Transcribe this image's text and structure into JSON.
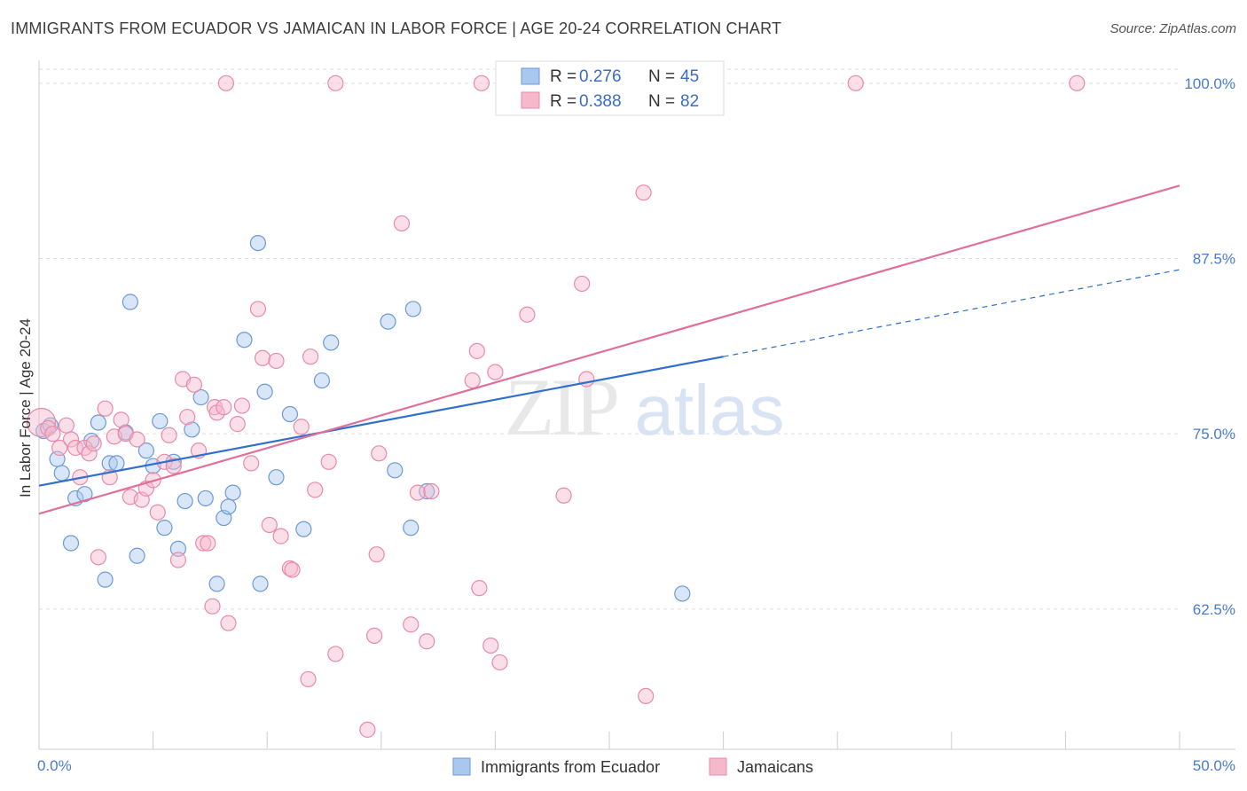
{
  "header": {
    "title": "IMMIGRANTS FROM ECUADOR VS JAMAICAN IN LABOR FORCE | AGE 20-24 CORRELATION CHART",
    "source": "Source: ZipAtlas.com"
  },
  "watermark": {
    "zip": "ZIP",
    "atlas": "atlas"
  },
  "legend": {
    "rows": [
      {
        "r_label": "R =",
        "r_value": "0.276",
        "n_label": "N =",
        "n_value": "45"
      },
      {
        "r_label": "R =",
        "r_value": "0.388",
        "n_label": "N =",
        "n_value": "82"
      }
    ]
  },
  "bottom_legend": [
    "Immigrants from Ecuador",
    "Jamaicans"
  ],
  "colors": {
    "ecuador_fill": "#a9c8f0",
    "ecuador_stroke": "#6b9ad8",
    "ecuador_line": "#2f6fcf",
    "jamaican_fill": "#f6b8cb",
    "jamaican_stroke": "#e98aa8",
    "jamaican_line": "#e0709a",
    "grid": "#dddddd",
    "tick_text": "#4a7bd0"
  },
  "chart_data": {
    "type": "scatter",
    "title": "IMMIGRANTS FROM ECUADOR VS JAMAICAN IN LABOR FORCE | AGE 20-24 CORRELATION CHART",
    "xlabel": "",
    "ylabel": "In Labor Force | Age 20-24",
    "xlim": [
      0,
      50
    ],
    "ylim": [
      52.5,
      101
    ],
    "x_tick_labels": [
      "0.0%",
      "50.0%"
    ],
    "y_ticks": [
      62.5,
      75.0,
      87.5,
      100.0
    ],
    "y_tick_labels": [
      "62.5%",
      "75.0%",
      "87.5%",
      "100.0%"
    ],
    "grid": true,
    "legend_position": "top-center",
    "series": [
      {
        "name": "Immigrants from Ecuador",
        "r": 0.276,
        "n": 45,
        "trend": {
          "x0": 0,
          "y0": 71.3,
          "x1": 30,
          "y1": 80.5,
          "dashed_to_x": 50,
          "dashed_to_y": 86.7
        },
        "points": [
          [
            0.2,
            75.2
          ],
          [
            0.5,
            75.6
          ],
          [
            0.8,
            73.2
          ],
          [
            1.0,
            72.2
          ],
          [
            1.4,
            67.2
          ],
          [
            1.6,
            70.4
          ],
          [
            2.0,
            70.7
          ],
          [
            2.3,
            74.5
          ],
          [
            2.6,
            75.8
          ],
          [
            2.9,
            64.6
          ],
          [
            3.1,
            72.9
          ],
          [
            3.4,
            72.9
          ],
          [
            3.8,
            75.1
          ],
          [
            4.0,
            84.4
          ],
          [
            4.3,
            66.3
          ],
          [
            4.7,
            73.8
          ],
          [
            5.0,
            72.7
          ],
          [
            5.3,
            75.9
          ],
          [
            5.5,
            68.3
          ],
          [
            5.9,
            73.0
          ],
          [
            6.1,
            66.8
          ],
          [
            6.4,
            70.2
          ],
          [
            6.7,
            75.3
          ],
          [
            7.1,
            77.6
          ],
          [
            7.3,
            70.4
          ],
          [
            7.8,
            64.3
          ],
          [
            8.1,
            69.0
          ],
          [
            8.3,
            69.8
          ],
          [
            8.5,
            70.8
          ],
          [
            9.0,
            81.7
          ],
          [
            9.6,
            88.6
          ],
          [
            9.7,
            64.3
          ],
          [
            9.9,
            78.0
          ],
          [
            10.4,
            71.9
          ],
          [
            11.0,
            76.4
          ],
          [
            11.6,
            68.2
          ],
          [
            12.4,
            78.8
          ],
          [
            12.8,
            81.5
          ],
          [
            15.3,
            83.0
          ],
          [
            15.6,
            72.4
          ],
          [
            16.3,
            68.3
          ],
          [
            16.4,
            83.9
          ],
          [
            17.0,
            70.9
          ],
          [
            26.6,
            100.0
          ],
          [
            28.2,
            63.6
          ]
        ]
      },
      {
        "name": "Jamaicans",
        "r": 0.388,
        "n": 82,
        "trend": {
          "x0": 0,
          "y0": 69.3,
          "x1": 50,
          "y1": 92.7
        },
        "points": [
          [
            0.1,
            75.8
          ],
          [
            0.4,
            75.4
          ],
          [
            0.6,
            75.0
          ],
          [
            0.9,
            74.0
          ],
          [
            1.2,
            75.6
          ],
          [
            1.4,
            74.6
          ],
          [
            1.6,
            74.0
          ],
          [
            1.8,
            71.9
          ],
          [
            2.0,
            74.0
          ],
          [
            2.2,
            73.6
          ],
          [
            2.4,
            74.3
          ],
          [
            2.6,
            66.2
          ],
          [
            2.9,
            76.8
          ],
          [
            3.1,
            71.9
          ],
          [
            3.3,
            74.8
          ],
          [
            3.6,
            76.0
          ],
          [
            3.8,
            75.0
          ],
          [
            4.0,
            70.5
          ],
          [
            4.3,
            74.6
          ],
          [
            4.5,
            70.3
          ],
          [
            4.7,
            71.1
          ],
          [
            5.0,
            71.7
          ],
          [
            5.2,
            69.4
          ],
          [
            5.5,
            73.0
          ],
          [
            5.7,
            74.9
          ],
          [
            5.9,
            72.7
          ],
          [
            6.1,
            66.0
          ],
          [
            6.3,
            78.9
          ],
          [
            6.5,
            76.2
          ],
          [
            6.8,
            78.5
          ],
          [
            7.0,
            73.8
          ],
          [
            7.2,
            67.2
          ],
          [
            7.4,
            67.2
          ],
          [
            7.6,
            62.7
          ],
          [
            7.7,
            76.9
          ],
          [
            7.8,
            76.5
          ],
          [
            8.1,
            76.9
          ],
          [
            8.3,
            61.5
          ],
          [
            8.7,
            75.7
          ],
          [
            8.9,
            77.0
          ],
          [
            9.3,
            72.9
          ],
          [
            9.6,
            83.9
          ],
          [
            9.8,
            80.4
          ],
          [
            10.1,
            68.5
          ],
          [
            10.4,
            80.2
          ],
          [
            10.6,
            67.7
          ],
          [
            11.0,
            65.4
          ],
          [
            11.1,
            65.3
          ],
          [
            11.5,
            75.5
          ],
          [
            11.8,
            57.5
          ],
          [
            11.9,
            80.5
          ],
          [
            12.1,
            71.0
          ],
          [
            12.7,
            73.0
          ],
          [
            13.0,
            59.3
          ],
          [
            13.0,
            100.0
          ],
          [
            14.4,
            53.9
          ],
          [
            14.7,
            60.6
          ],
          [
            14.8,
            66.4
          ],
          [
            14.9,
            73.6
          ],
          [
            15.9,
            90.0
          ],
          [
            16.3,
            61.4
          ],
          [
            16.6,
            70.8
          ],
          [
            17.0,
            60.2
          ],
          [
            17.2,
            70.9
          ],
          [
            19.0,
            78.8
          ],
          [
            19.2,
            80.9
          ],
          [
            19.3,
            64.0
          ],
          [
            19.4,
            100.0
          ],
          [
            19.8,
            59.9
          ],
          [
            20.0,
            79.4
          ],
          [
            20.2,
            58.7
          ],
          [
            21.4,
            83.5
          ],
          [
            23.0,
            70.6
          ],
          [
            23.8,
            85.7
          ],
          [
            24.0,
            78.9
          ],
          [
            26.5,
            92.2
          ],
          [
            26.6,
            56.3
          ],
          [
            27.3,
            100.0
          ],
          [
            28.1,
            100.0
          ],
          [
            35.8,
            100.0
          ],
          [
            45.5,
            100.0
          ],
          [
            8.2,
            100.0
          ]
        ]
      }
    ]
  }
}
